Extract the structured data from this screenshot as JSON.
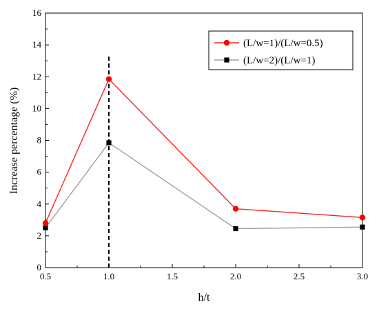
{
  "chart_data": {
    "type": "line",
    "xlabel": "h/t",
    "ylabel": "Increase percentage (%)",
    "xlim": [
      0.5,
      3.0
    ],
    "ylim": [
      0,
      16
    ],
    "xticks": [
      0.5,
      1.0,
      1.5,
      2.0,
      2.5,
      3.0
    ],
    "xtick_labels": [
      "0.5",
      "1.0",
      "1.5",
      "2.0",
      "2.5",
      "3.0"
    ],
    "yticks": [
      0,
      2,
      4,
      6,
      8,
      10,
      12,
      14,
      16
    ],
    "ytick_labels": [
      "0",
      "2",
      "4",
      "6",
      "8",
      "10",
      "12",
      "14",
      "16"
    ],
    "grid": false,
    "legend_position": "top-right",
    "reference_line": {
      "x": 1.0,
      "style": "dashed",
      "color": "#000000"
    },
    "series": [
      {
        "name": "(L/w=1)/(L/w=0.5)",
        "line_color": "#ff2020",
        "marker_color": "#ff0000",
        "marker": "circle",
        "x": [
          0.5,
          1.0,
          2.0,
          3.0
        ],
        "y": [
          2.8,
          11.85,
          3.7,
          3.15
        ]
      },
      {
        "name": "(L/w=2)/(L/w=1)",
        "line_color": "#a0a0a0",
        "marker_color": "#000000",
        "marker": "square",
        "x": [
          0.5,
          1.0,
          2.0,
          3.0
        ],
        "y": [
          2.5,
          7.85,
          2.45,
          2.55
        ]
      }
    ]
  }
}
